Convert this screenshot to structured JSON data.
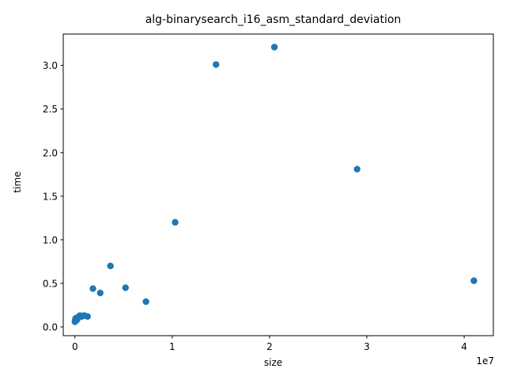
{
  "chart_data": {
    "type": "scatter",
    "title": "alg-binarysearch_i16_asm_standard_deviation",
    "xlabel": "size",
    "ylabel": "time",
    "x_offset_text": "1e7",
    "xlim": [
      -1200000,
      43000000
    ],
    "ylim": [
      -0.1,
      3.36
    ],
    "xticks": [
      0,
      10000000,
      20000000,
      30000000,
      40000000
    ],
    "xtick_labels": [
      "0",
      "1",
      "2",
      "3",
      "4"
    ],
    "yticks": [
      0.0,
      0.5,
      1.0,
      1.5,
      2.0,
      2.5,
      3.0
    ],
    "ytick_labels": [
      "0.0",
      "0.5",
      "1.0",
      "1.5",
      "2.0",
      "2.5",
      "3.0"
    ],
    "grid": false,
    "marker_color": "#1f77b4",
    "series": [
      {
        "points": [
          {
            "x": 1000,
            "y": 0.06
          },
          {
            "x": 20000,
            "y": 0.07
          },
          {
            "x": 50000,
            "y": 0.09
          },
          {
            "x": 100000,
            "y": 0.1
          },
          {
            "x": 200000,
            "y": 0.08
          },
          {
            "x": 300000,
            "y": 0.1
          },
          {
            "x": 400000,
            "y": 0.12
          },
          {
            "x": 512000,
            "y": 0.13
          },
          {
            "x": 700000,
            "y": 0.12
          },
          {
            "x": 900000,
            "y": 0.13
          },
          {
            "x": 1000000,
            "y": 0.13
          },
          {
            "x": 1300000,
            "y": 0.12
          },
          {
            "x": 1850000,
            "y": 0.44
          },
          {
            "x": 2600000,
            "y": 0.39
          },
          {
            "x": 3650000,
            "y": 0.7
          },
          {
            "x": 5200000,
            "y": 0.45
          },
          {
            "x": 7300000,
            "y": 0.29
          },
          {
            "x": 10300000,
            "y": 1.2
          },
          {
            "x": 14500000,
            "y": 3.01
          },
          {
            "x": 20500000,
            "y": 3.21
          },
          {
            "x": 29000000,
            "y": 1.81
          },
          {
            "x": 41000000,
            "y": 0.53
          }
        ]
      }
    ]
  }
}
